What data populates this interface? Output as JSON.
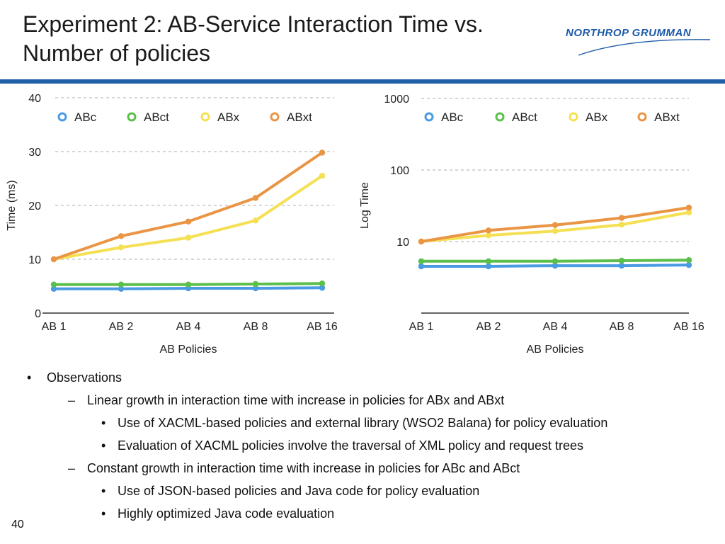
{
  "slide": {
    "title_line1": "Experiment 2: AB-Service Interaction Time vs.",
    "title_line2": "Number of policies",
    "logo_text": "NORTHROP GRUMMAN",
    "page_number": "40",
    "accent_color": "#1f5fa6"
  },
  "observations": {
    "heading": "Observations",
    "item1": "Linear growth in interaction time with increase in policies for ABx and ABxt",
    "item1_sub1": "Use of XACML-based policies and external library (WSO2 Balana) for policy evaluation",
    "item1_sub2": "Evaluation of XACML policies involve the traversal of XML policy and request trees",
    "item2": "Constant growth in interaction time with increase in policies for ABc and ABct",
    "item2_sub1": "Use of JSON-based policies and Java code for policy evaluation",
    "item2_sub2": "Highly optimized Java code evaluation",
    "bullet": "•",
    "dash": "–"
  },
  "chart_data": [
    {
      "type": "line",
      "title": "",
      "xlabel": "AB Policies",
      "ylabel": "Time (ms)",
      "categories": [
        "AB 1",
        "AB 2",
        "AB 4",
        "AB 8",
        "AB 16"
      ],
      "ylim": [
        0,
        40
      ],
      "yticks": [
        0,
        10,
        20,
        30,
        40
      ],
      "ytick_labels": [
        "0",
        "10",
        "20",
        "30",
        "40"
      ],
      "grid": true,
      "legend": "top",
      "series": [
        {
          "name": "ABc",
          "color": "#4a9be3",
          "values": [
            4.5,
            4.5,
            4.6,
            4.6,
            4.7
          ]
        },
        {
          "name": "ABct",
          "color": "#5cbf4c",
          "values": [
            5.3,
            5.3,
            5.3,
            5.4,
            5.5
          ]
        },
        {
          "name": "ABx",
          "color": "#f5e054",
          "values": [
            10.0,
            12.2,
            14.0,
            17.2,
            25.5
          ]
        },
        {
          "name": "ABxt",
          "color": "#ea9545",
          "values": [
            10.0,
            14.3,
            17.0,
            21.4,
            29.8
          ]
        }
      ]
    },
    {
      "type": "line",
      "title": "",
      "xlabel": "AB Policies",
      "ylabel": "Log Time",
      "categories": [
        "AB 1",
        "AB 2",
        "AB 4",
        "AB 8",
        "AB 16"
      ],
      "yscale": "log",
      "ylim": [
        1,
        1000
      ],
      "yticks": [
        10,
        100,
        1000
      ],
      "ytick_labels": [
        "10",
        "100",
        "1000"
      ],
      "grid": true,
      "legend": "top",
      "series": [
        {
          "name": "ABc",
          "color": "#4a9be3",
          "values": [
            4.5,
            4.5,
            4.6,
            4.6,
            4.7
          ]
        },
        {
          "name": "ABct",
          "color": "#5cbf4c",
          "values": [
            5.3,
            5.3,
            5.3,
            5.4,
            5.5
          ]
        },
        {
          "name": "ABx",
          "color": "#f5e054",
          "values": [
            10.0,
            12.2,
            14.0,
            17.2,
            25.5
          ]
        },
        {
          "name": "ABxt",
          "color": "#ea9545",
          "values": [
            10.0,
            14.3,
            17.0,
            21.4,
            29.8
          ]
        }
      ]
    }
  ]
}
